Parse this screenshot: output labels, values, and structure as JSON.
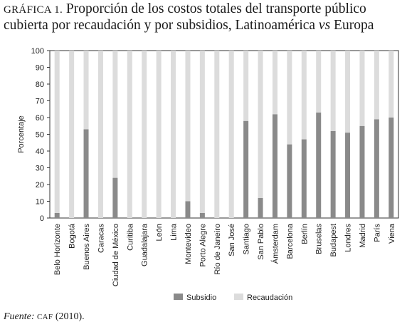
{
  "title": {
    "label": "GRÁFICA 1.",
    "line1": "Proporción de los costos totales del transporte público",
    "line2_a": "cubierta por recaudación y por subsidios, Latinoamérica ",
    "line2_vs": "vs",
    "line2_b": " Europa"
  },
  "source": {
    "label": "Fuente:",
    "org": "CAF",
    "year": " (2010)."
  },
  "colors": {
    "subsidio": "#8a8a8a",
    "recaudacion": "#dcdcdc",
    "axis": "#333333"
  },
  "chart_data": {
    "type": "bar",
    "stacked": true,
    "ylabel": "Porcentaje",
    "ylim": [
      0,
      100
    ],
    "yticks": [
      0,
      10,
      20,
      30,
      40,
      50,
      60,
      70,
      80,
      90,
      100
    ],
    "legend_position": "bottom",
    "categories": [
      "Belo Horizonte",
      "Bogotá",
      "Buenos Aires",
      "Caracas",
      "Ciudad de México",
      "Curitiba",
      "Guadalajara",
      "León",
      "Lima",
      "Montevideo",
      "Porto Alegre",
      "Río de Janeiro",
      "San José",
      "Santiago",
      "San Pablo",
      "Ámsterdam",
      "Barcelona",
      "Berlín",
      "Bruselas",
      "Budapest",
      "Londres",
      "Madrid",
      "París",
      "Viena"
    ],
    "series": [
      {
        "name": "Subsidio",
        "values": [
          3,
          0,
          53,
          0,
          24,
          0,
          0,
          0,
          0,
          10,
          3,
          0,
          0,
          58,
          12,
          62,
          44,
          47,
          63,
          52,
          51,
          55,
          59,
          60
        ]
      },
      {
        "name": "Recaudación",
        "values": [
          97,
          100,
          47,
          100,
          76,
          100,
          100,
          100,
          100,
          90,
          97,
          100,
          100,
          42,
          88,
          38,
          56,
          53,
          37,
          48,
          49,
          45,
          41,
          40
        ]
      }
    ]
  }
}
